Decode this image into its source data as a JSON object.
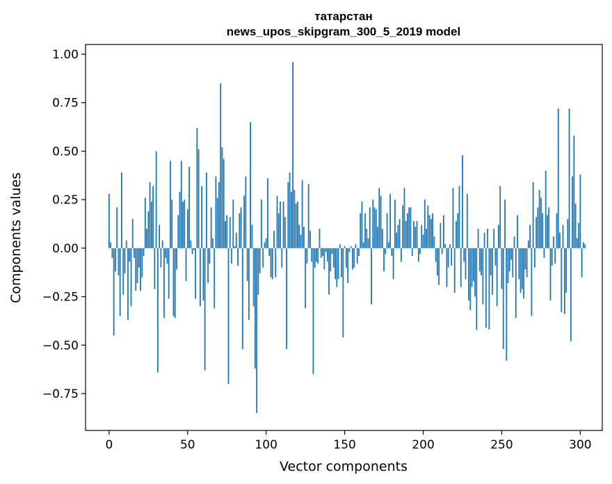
{
  "chart_data": {
    "type": "bar",
    "title_line1": "татарстан",
    "title_line2": "news_upos_skipgram_300_5_2019 model",
    "xlabel": "Vector components",
    "ylabel": "Components values",
    "xlim": [
      -15,
      314
    ],
    "ylim": [
      -0.94,
      1.05
    ],
    "xticks": [
      0,
      50,
      100,
      150,
      200,
      250,
      300
    ],
    "yticks": [
      1.0,
      0.75,
      0.5,
      0.25,
      0.0,
      -0.25,
      -0.5,
      -0.75
    ],
    "ytick_labels": [
      "1.00",
      "0.75",
      "0.50",
      "0.25",
      "0.00",
      "−0.25",
      "−0.50",
      "−0.75"
    ],
    "bar_color": "#1f77b4",
    "grid": false,
    "values": [
      0.28,
      0.03,
      -0.05,
      -0.45,
      -0.12,
      0.21,
      -0.14,
      -0.35,
      0.39,
      -0.24,
      -0.13,
      0.04,
      -0.37,
      -0.07,
      -0.3,
      0.15,
      -0.05,
      -0.22,
      -0.18,
      -0.1,
      -0.22,
      -0.15,
      -0.04,
      0.26,
      0.1,
      0.19,
      0.34,
      0.24,
      0.32,
      -0.21,
      0.5,
      -0.64,
      0.12,
      -0.1,
      0.04,
      -0.36,
      -0.05,
      -0.08,
      -0.26,
      0.45,
      0.25,
      -0.35,
      -0.36,
      -0.11,
      0.17,
      0.29,
      0.45,
      0.24,
      0.25,
      -0.17,
      0.2,
      0.42,
      0.04,
      -0.03,
      -0.01,
      -0.26,
      0.62,
      0.51,
      -0.3,
      0.32,
      -0.27,
      -0.63,
      0.39,
      -0.18,
      -0.08,
      0.21,
      0.05,
      -0.31,
      0.37,
      0.26,
      0.34,
      0.85,
      0.52,
      0.46,
      0.14,
      0.17,
      -0.7,
      0.16,
      -0.08,
      0.25,
      0.01,
      0.08,
      -0.09,
      0.18,
      0.21,
      -0.52,
      0.27,
      0.37,
      -0.17,
      -0.37,
      0.65,
      0.12,
      -0.3,
      -0.62,
      -0.85,
      -0.24,
      -0.13,
      0.25,
      -0.1,
      0.03,
      0.05,
      0.36,
      -0.04,
      -0.15,
      -0.16,
      0.09,
      -0.15,
      0.27,
      0.18,
      0.24,
      -0.1,
      0.24,
      0.16,
      -0.52,
      0.34,
      0.39,
      0.29,
      0.96,
      0.3,
      0.23,
      0.24,
      0.12,
      0.07,
      0.35,
      0.11,
      -0.31,
      -0.08,
      0.33,
      0.09,
      -0.07,
      -0.65,
      -0.1,
      -0.07,
      -0.08,
      0.1,
      -0.05,
      -0.04,
      -0.11,
      -0.02,
      -0.07,
      -0.24,
      -0.12,
      -0.03,
      -0.1,
      -0.16,
      -0.2,
      -0.16,
      0.02,
      -0.15,
      -0.46,
      0.01,
      -0.1,
      -0.18,
      -0.02,
      0.01,
      -0.11,
      -0.1,
      0.02,
      -0.08,
      -0.04,
      0.18,
      0.24,
      0.03,
      0.18,
      0.1,
      0.05,
      0.21,
      -0.29,
      0.25,
      0.21,
      0.2,
      0.11,
      0.31,
      0.27,
      0.1,
      -0.12,
      -0.03,
      0.18,
      0.03,
      0.28,
      -0.04,
      -0.16,
      0.25,
      0.08,
      0.12,
      0.15,
      -0.07,
      0.22,
      0.31,
      0.14,
      0.18,
      0.21,
      0.21,
      -0.04,
      0.14,
      0.11,
      0.14,
      -0.07,
      -0.03,
      0.12,
      0.07,
      0.25,
      0.1,
      0.22,
      0.17,
      0.15,
      0.18,
      0.06,
      -0.07,
      -0.14,
      -0.19,
      0.13,
      -0.03,
      0.17,
      0.02,
      -0.2,
      -0.1,
      0.02,
      -0.09,
      0.31,
      -0.23,
      0.14,
      0.18,
      0.32,
      -0.2,
      0.48,
      -0.07,
      -0.16,
      0.28,
      -0.27,
      -0.32,
      -0.2,
      -0.17,
      -0.25,
      -0.42,
      0.1,
      -0.12,
      -0.14,
      -0.29,
      0.08,
      -0.41,
      0.1,
      -0.42,
      -0.14,
      -0.24,
      0.1,
      -0.09,
      -0.3,
      0.12,
      0.32,
      -0.21,
      -0.52,
      0.25,
      -0.58,
      -0.18,
      -0.12,
      -0.06,
      -0.15,
      0.06,
      -0.36,
      0.17,
      -0.16,
      -0.23,
      -0.21,
      -0.26,
      -0.11,
      -0.15,
      0.04,
      0.12,
      -0.35,
      0.34,
      -0.1,
      0.16,
      0.21,
      0.3,
      0.26,
      0.18,
      -0.05,
      0.4,
      0.17,
      0.21,
      -0.27,
      -0.09,
      0.06,
      -0.08,
      0.18,
      0.72,
      0.08,
      -0.33,
      0.12,
      -0.34,
      -0.23,
      0.15,
      0.72,
      -0.48,
      0.37,
      0.58,
      0.23,
      0.05,
      0.13,
      0.38,
      -0.15,
      0.03,
      0.02
    ]
  }
}
